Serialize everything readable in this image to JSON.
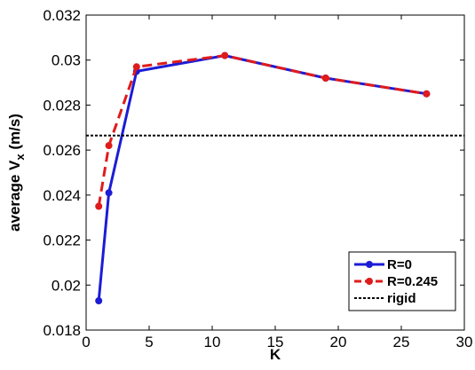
{
  "chart_data": {
    "type": "line",
    "title": "",
    "xlabel": "K",
    "ylabel": "average V",
    "ylabel_subscript": "x",
    "ylabel_unit": "(m/s)",
    "xlim": [
      0,
      30
    ],
    "ylim": [
      0.018,
      0.032
    ],
    "xticks": [
      0,
      5,
      10,
      15,
      20,
      25,
      30
    ],
    "xtick_labels": [
      "0",
      "5",
      "10",
      "15",
      "20",
      "25",
      "30"
    ],
    "yticks": [
      0.018,
      0.02,
      0.022,
      0.024,
      0.026,
      0.028,
      0.03,
      0.032
    ],
    "ytick_labels": [
      "0.018",
      "0.02",
      "0.022",
      "0.024",
      "0.026",
      "0.028",
      "0.03",
      "0.032"
    ],
    "grid": false,
    "legend_position": "bottom-right",
    "series": [
      {
        "name": "R=0",
        "color": "#1c1cd6",
        "style": "solid",
        "marker": "circle",
        "x": [
          1,
          1.8,
          4,
          11,
          19,
          27
        ],
        "y": [
          0.0193,
          0.0241,
          0.0295,
          0.0302,
          0.0292,
          0.0285
        ]
      },
      {
        "name": "R=0.245",
        "color": "#e01b1b",
        "style": "dashed",
        "marker": "circle",
        "x": [
          1,
          1.8,
          4,
          11,
          19,
          27
        ],
        "y": [
          0.0235,
          0.0262,
          0.0297,
          0.0302,
          0.0292,
          0.0285
        ]
      },
      {
        "name": "rigid",
        "color": "#000000",
        "style": "dotted",
        "marker": "none",
        "x": [
          0,
          30
        ],
        "y": [
          0.02665,
          0.02665
        ]
      }
    ]
  }
}
